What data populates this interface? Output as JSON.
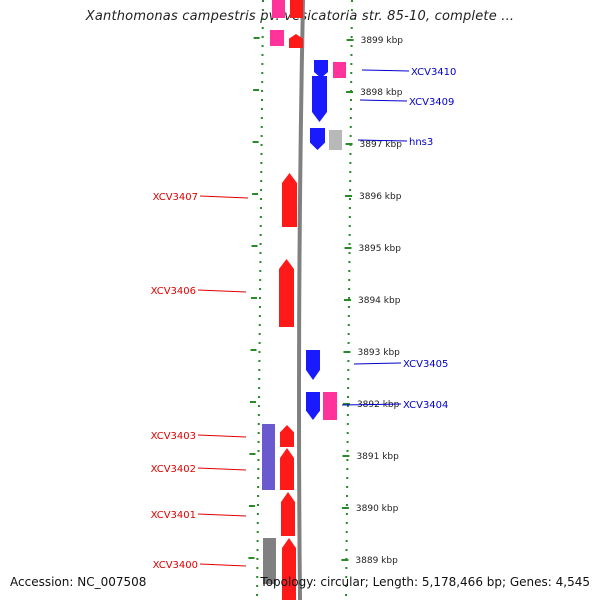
{
  "header": {
    "title": "Xanthomonas campestris pv. vesicatoria str. 85-10, complete ..."
  },
  "footer": {
    "accession": "Accession: NC_007508",
    "summary": "Topology: circular; Length: 5,178,466 bp; Genes: 4,545"
  },
  "colors": {
    "forward_gene": "#ff1a1a",
    "reverse_gene": "#1a1aff",
    "pink_feature": "#ff3399",
    "purple_feature": "#6a5acd",
    "gray_feature": "#808080",
    "light_gray_feature": "#b8b8b8",
    "tick_green": "#2a8a2a",
    "label_red": "#e00000",
    "label_blue": "#0000cc",
    "backbone": "#808080"
  },
  "ruler": {
    "ticks": [
      {
        "label": "3899 kbp",
        "kbp": 3899
      },
      {
        "label": "3898 kbp",
        "kbp": 3898
      },
      {
        "label": "3897 kbp",
        "kbp": 3897
      },
      {
        "label": "3896 kbp",
        "kbp": 3896
      },
      {
        "label": "3895 kbp",
        "kbp": 3895
      },
      {
        "label": "3894 kbp",
        "kbp": 3894
      },
      {
        "label": "3893 kbp",
        "kbp": 3893
      },
      {
        "label": "3892 kbp",
        "kbp": 3892
      },
      {
        "label": "3891 kbp",
        "kbp": 3891
      },
      {
        "label": "3890 kbp",
        "kbp": 3890
      },
      {
        "label": "3889 kbp",
        "kbp": 3889
      }
    ]
  },
  "genes_left": [
    {
      "name": "XCV3407",
      "color": "forward_gene"
    },
    {
      "name": "XCV3406",
      "color": "forward_gene"
    },
    {
      "name": "XCV3403",
      "color": "forward_gene"
    },
    {
      "name": "XCV3402",
      "color": "forward_gene"
    },
    {
      "name": "XCV3401",
      "color": "forward_gene"
    },
    {
      "name": "XCV3400",
      "color": "forward_gene"
    }
  ],
  "genes_right": [
    {
      "name": "XCV3410",
      "color": "reverse_gene"
    },
    {
      "name": "XCV3409",
      "color": "reverse_gene"
    },
    {
      "name": "hns3",
      "color": "reverse_gene"
    },
    {
      "name": "XCV3405",
      "color": "reverse_gene"
    },
    {
      "name": "XCV3404",
      "color": "reverse_gene"
    }
  ]
}
